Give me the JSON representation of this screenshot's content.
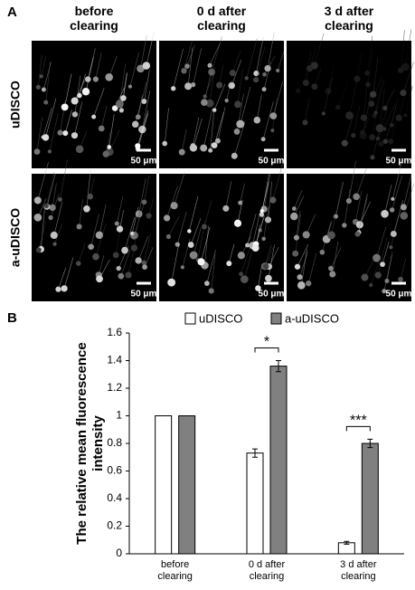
{
  "panel_a": {
    "label": "A",
    "columns": [
      "before clearing",
      "0 d after clearing",
      "3 d after clearing"
    ],
    "rows": [
      "uDISCO",
      "a-uDISCO"
    ],
    "scale_bar": "50 μm"
  },
  "panel_b": {
    "label": "B"
  },
  "chart_data": {
    "type": "bar",
    "ylabel": "The relative mean fluorescence intensity",
    "categories": [
      "before clearing",
      "0 d after clearing",
      "3 d after clearing"
    ],
    "series": [
      {
        "name": "uDISCO",
        "color": "#ffffff",
        "values": [
          1,
          0.73,
          0.08
        ],
        "errors": [
          0,
          0.03,
          0.01
        ]
      },
      {
        "name": "a-uDISCO",
        "color": "#808080",
        "values": [
          1,
          1.36,
          0.8
        ],
        "errors": [
          0,
          0.04,
          0.03
        ]
      }
    ],
    "significance": [
      null,
      "*",
      "***"
    ],
    "ylim": [
      0,
      1.6
    ],
    "yticks": [
      0,
      0.2,
      0.4,
      0.6,
      0.8,
      1,
      1.2,
      1.4,
      1.6
    ],
    "legend": "top"
  }
}
